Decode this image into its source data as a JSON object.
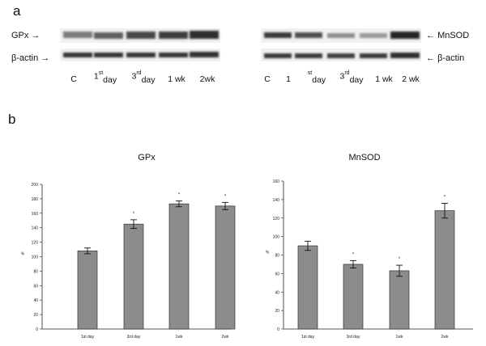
{
  "panel_a": {
    "letter": "a",
    "left_blot": {
      "top_label": "GPx",
      "bottom_label": "β-actin",
      "lanes": [
        {
          "text": "C",
          "sup": ""
        },
        {
          "text": "1",
          "sup": "st",
          "after": "day"
        },
        {
          "text": "3",
          "sup": "rd",
          "after": "day"
        },
        {
          "text": "1 wk",
          "sup": ""
        },
        {
          "text": "2wk",
          "sup": ""
        }
      ]
    },
    "right_blot": {
      "top_label": "MnSOD",
      "bottom_label": "β-actin",
      "lanes": [
        {
          "text": "C",
          "sup": ""
        },
        {
          "text": "1",
          "sup": ""
        },
        {
          "text": "",
          "sup": "st",
          "after": "day"
        },
        {
          "text": "3",
          "sup": "rd",
          "after": "day"
        },
        {
          "text": "1 wk",
          "sup": ""
        },
        {
          "text": "2 wk",
          "sup": ""
        }
      ]
    }
  },
  "panel_b": {
    "letter": "b"
  },
  "chart_data": [
    {
      "type": "bar",
      "title": "GPx",
      "ylabel": "%",
      "xlabel": "",
      "categories": [
        "1st day",
        "3rd day",
        "1wk",
        "2wk"
      ],
      "values": [
        108,
        145,
        173,
        170
      ],
      "errors": [
        4,
        6,
        4,
        5
      ],
      "significance": [
        "",
        "*",
        "*",
        "*"
      ],
      "ylim": [
        0,
        200
      ],
      "yticks": [
        0,
        20,
        40,
        60,
        80,
        100,
        120,
        140,
        160,
        180,
        200
      ],
      "bar_color": "#8c8c8c",
      "grid": false
    },
    {
      "type": "bar",
      "title": "MnSOD",
      "ylabel": "%",
      "xlabel": "",
      "categories": [
        "1st day",
        "3rd day",
        "1wk",
        "2wk"
      ],
      "values": [
        90,
        70,
        63,
        128
      ],
      "errors": [
        5,
        4,
        6,
        8
      ],
      "significance": [
        "",
        "*",
        "*",
        "*"
      ],
      "ylim": [
        0,
        160
      ],
      "yticks": [
        0,
        20,
        40,
        60,
        80,
        100,
        120,
        140,
        160
      ],
      "bar_color": "#8c8c8c",
      "grid": false
    }
  ]
}
